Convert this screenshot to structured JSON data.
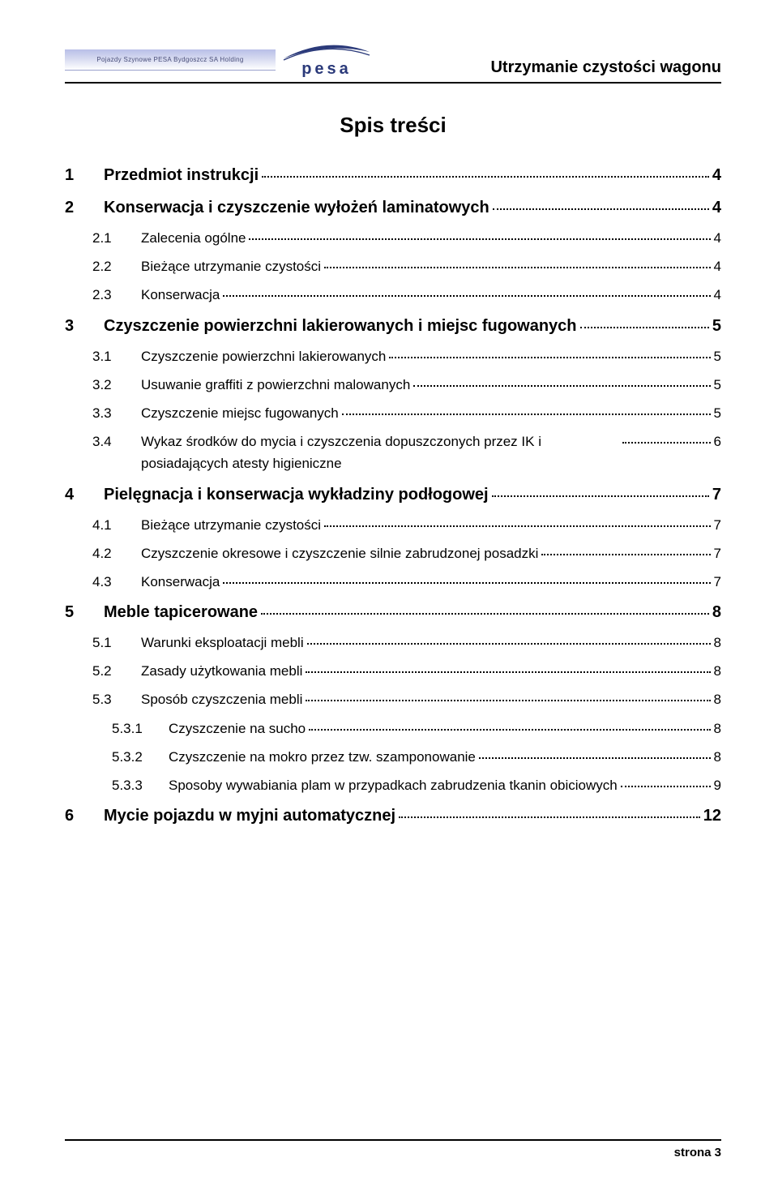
{
  "header": {
    "company_strip": "Pojazdy Szynowe PESA Bydgoszcz SA Holding",
    "brand": "pesa",
    "doc_title": "Utrzymanie czystości wagonu"
  },
  "toc_heading": "Spis treści",
  "toc": [
    {
      "level": 1,
      "num": "1",
      "label": "Przedmiot instrukcji",
      "page": "4"
    },
    {
      "level": 1,
      "num": "2",
      "label": "Konserwacja i czyszczenie wyłożeń laminatowych",
      "page": "4"
    },
    {
      "level": 2,
      "num": "2.1",
      "label": "Zalecenia ogólne",
      "page": "4"
    },
    {
      "level": 2,
      "num": "2.2",
      "label": "Bieżące utrzymanie czystości",
      "page": "4"
    },
    {
      "level": 2,
      "num": "2.3",
      "label": "Konserwacja",
      "page": "4"
    },
    {
      "level": 1,
      "num": "3",
      "label": "Czyszczenie powierzchni lakierowanych i miejsc fugowanych",
      "page": "5"
    },
    {
      "level": 2,
      "num": "3.1",
      "label": "Czyszczenie powierzchni lakierowanych",
      "page": "5"
    },
    {
      "level": 2,
      "num": "3.2",
      "label": "Usuwanie graffiti z powierzchni malowanych",
      "page": "5"
    },
    {
      "level": 2,
      "num": "3.3",
      "label": "Czyszczenie miejsc fugowanych",
      "page": "5"
    },
    {
      "level": 2,
      "num": "3.4",
      "label": "Wykaz środków do mycia i czyszczenia dopuszczonych przez IK i posiadających atesty higieniczne",
      "page": "6"
    },
    {
      "level": 1,
      "num": "4",
      "label": "Pielęgnacja i konserwacja wykładziny podłogowej",
      "page": "7"
    },
    {
      "level": 2,
      "num": "4.1",
      "label": "Bieżące utrzymanie czystości",
      "page": "7"
    },
    {
      "level": 2,
      "num": "4.2",
      "label": "Czyszczenie okresowe i czyszczenie silnie zabrudzonej posadzki",
      "page": "7"
    },
    {
      "level": 2,
      "num": "4.3",
      "label": "Konserwacja",
      "page": "7"
    },
    {
      "level": 1,
      "num": "5",
      "label": "Meble tapicerowane",
      "page": "8"
    },
    {
      "level": 2,
      "num": "5.1",
      "label": "Warunki eksploatacji mebli",
      "page": "8"
    },
    {
      "level": 2,
      "num": "5.2",
      "label": "Zasady użytkowania mebli",
      "page": "8"
    },
    {
      "level": 2,
      "num": "5.3",
      "label": "Sposób czyszczenia mebli",
      "page": "8"
    },
    {
      "level": 3,
      "num": "5.3.1",
      "label": "Czyszczenie na sucho",
      "page": "8"
    },
    {
      "level": 3,
      "num": "5.3.2",
      "label": "Czyszczenie na mokro przez tzw. szamponowanie",
      "page": "8"
    },
    {
      "level": 3,
      "num": "5.3.3",
      "label": "Sposoby wywabiania plam w przypadkach zabrudzenia tkanin obiciowych",
      "page": "9"
    },
    {
      "level": 1,
      "num": "6",
      "label": "Mycie pojazdu w myjni automatycznej",
      "page": "12"
    }
  ],
  "footer": {
    "page_label": "strona  3"
  },
  "colors": {
    "text": "#000000",
    "brand": "#2b3a7a",
    "strip_top": "#b9bfe8",
    "strip_mid": "#d6daf0",
    "background": "#ffffff"
  }
}
